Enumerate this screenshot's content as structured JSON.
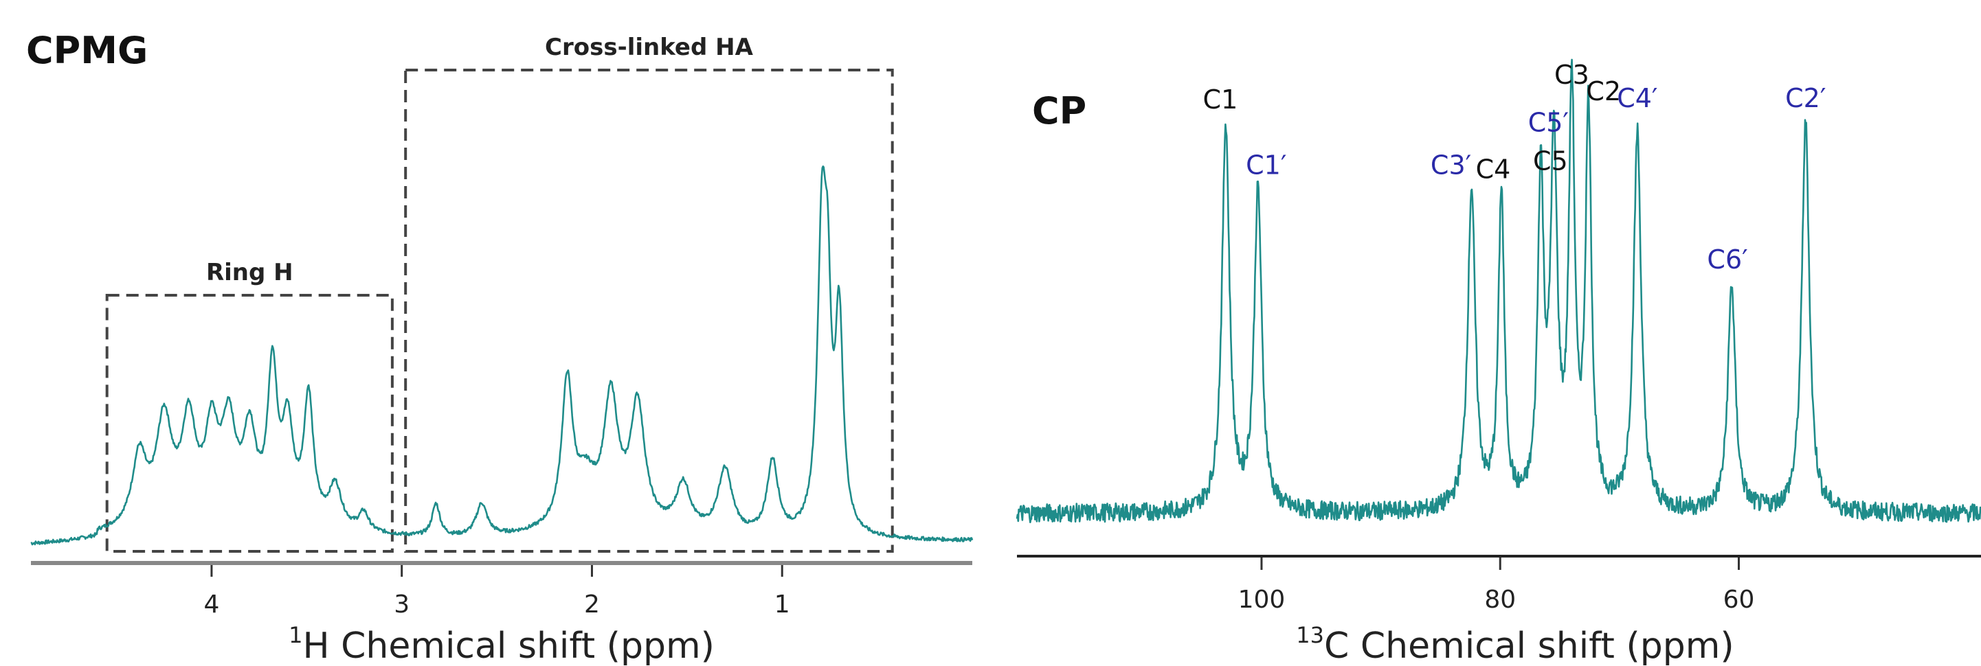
{
  "colors": {
    "trace": "#1f8c8a",
    "axis": "#333333",
    "box": "#444444",
    "peak_main": "#111111",
    "peak_prime": "#2a2aa8"
  },
  "chart_data": [
    {
      "type": "line",
      "title": "CPMG",
      "xlabel_sup": "1",
      "xlabel": "H Chemical shift (ppm)",
      "xlim": [
        4.95,
        0.0
      ],
      "xticks": [
        "4",
        "3",
        "2",
        "1"
      ],
      "xtick_values": [
        4,
        3,
        2,
        1
      ],
      "ylim": [
        0,
        1
      ],
      "regions": [
        {
          "label": "Ring H",
          "x_from": 4.55,
          "x_to": 3.05
        },
        {
          "label": "Cross-linked HA",
          "x_from": 2.98,
          "x_to": 0.42
        }
      ],
      "peaks": [
        {
          "x": 4.38,
          "h": 0.15,
          "w": 0.045
        },
        {
          "x": 4.25,
          "h": 0.22,
          "w": 0.05
        },
        {
          "x": 4.12,
          "h": 0.21,
          "w": 0.045
        },
        {
          "x": 4.0,
          "h": 0.18,
          "w": 0.04
        },
        {
          "x": 3.91,
          "h": 0.2,
          "w": 0.045
        },
        {
          "x": 3.8,
          "h": 0.18,
          "w": 0.04
        },
        {
          "x": 3.68,
          "h": 0.32,
          "w": 0.03
        },
        {
          "x": 3.6,
          "h": 0.2,
          "w": 0.035
        },
        {
          "x": 3.49,
          "h": 0.27,
          "w": 0.03
        },
        {
          "x": 3.35,
          "h": 0.09,
          "w": 0.04
        },
        {
          "x": 3.2,
          "h": 0.04,
          "w": 0.03
        },
        {
          "x": 2.82,
          "h": 0.07,
          "w": 0.025
        },
        {
          "x": 2.58,
          "h": 0.07,
          "w": 0.035
        },
        {
          "x": 2.13,
          "h": 0.31,
          "w": 0.035
        },
        {
          "x": 2.03,
          "h": 0.09,
          "w": 0.06
        },
        {
          "x": 1.9,
          "h": 0.27,
          "w": 0.045
        },
        {
          "x": 1.76,
          "h": 0.26,
          "w": 0.045
        },
        {
          "x": 1.52,
          "h": 0.1,
          "w": 0.045
        },
        {
          "x": 1.3,
          "h": 0.14,
          "w": 0.045
        },
        {
          "x": 1.05,
          "h": 0.16,
          "w": 0.035
        },
        {
          "x": 0.79,
          "h": 0.65,
          "w": 0.028
        },
        {
          "x": 0.76,
          "h": 0.35,
          "w": 0.02
        },
        {
          "x": 0.7,
          "h": 0.45,
          "w": 0.025
        }
      ]
    },
    {
      "type": "line",
      "title": "CP",
      "xlabel_sup": "13",
      "xlabel": "C Chemical shift (ppm)",
      "xlim": [
        120.5,
        39.7
      ],
      "xticks": [
        "100",
        "80",
        "60"
      ],
      "xtick_values": [
        100,
        80,
        60
      ],
      "ylim": [
        0,
        1
      ],
      "peaks": [
        {
          "label": "C1",
          "x": 103.0,
          "h": 0.94,
          "w": 0.38,
          "group": "main"
        },
        {
          "label": "C1′",
          "x": 100.3,
          "h": 0.78,
          "w": 0.38,
          "group": "prime"
        },
        {
          "label": "C3′",
          "x": 82.4,
          "h": 0.78,
          "w": 0.38,
          "group": "prime"
        },
        {
          "label": "C4",
          "x": 79.9,
          "h": 0.77,
          "w": 0.3,
          "group": "main"
        },
        {
          "label": "C5",
          "x": 76.6,
          "h": 0.79,
          "w": 0.3,
          "group": "main"
        },
        {
          "label": "C5′",
          "x": 75.5,
          "h": 0.86,
          "w": 0.35,
          "group": "prime"
        },
        {
          "label": "C3",
          "x": 74.0,
          "h": 1.0,
          "w": 0.3,
          "group": "main"
        },
        {
          "label": "C2",
          "x": 72.6,
          "h": 0.96,
          "w": 0.3,
          "group": "main"
        },
        {
          "label": "C4′",
          "x": 68.5,
          "h": 0.92,
          "w": 0.38,
          "group": "prime"
        },
        {
          "label": "C6′",
          "x": 60.6,
          "h": 0.55,
          "w": 0.38,
          "group": "prime"
        },
        {
          "label": "C2′",
          "x": 54.4,
          "h": 0.95,
          "w": 0.38,
          "group": "prime"
        }
      ]
    }
  ]
}
